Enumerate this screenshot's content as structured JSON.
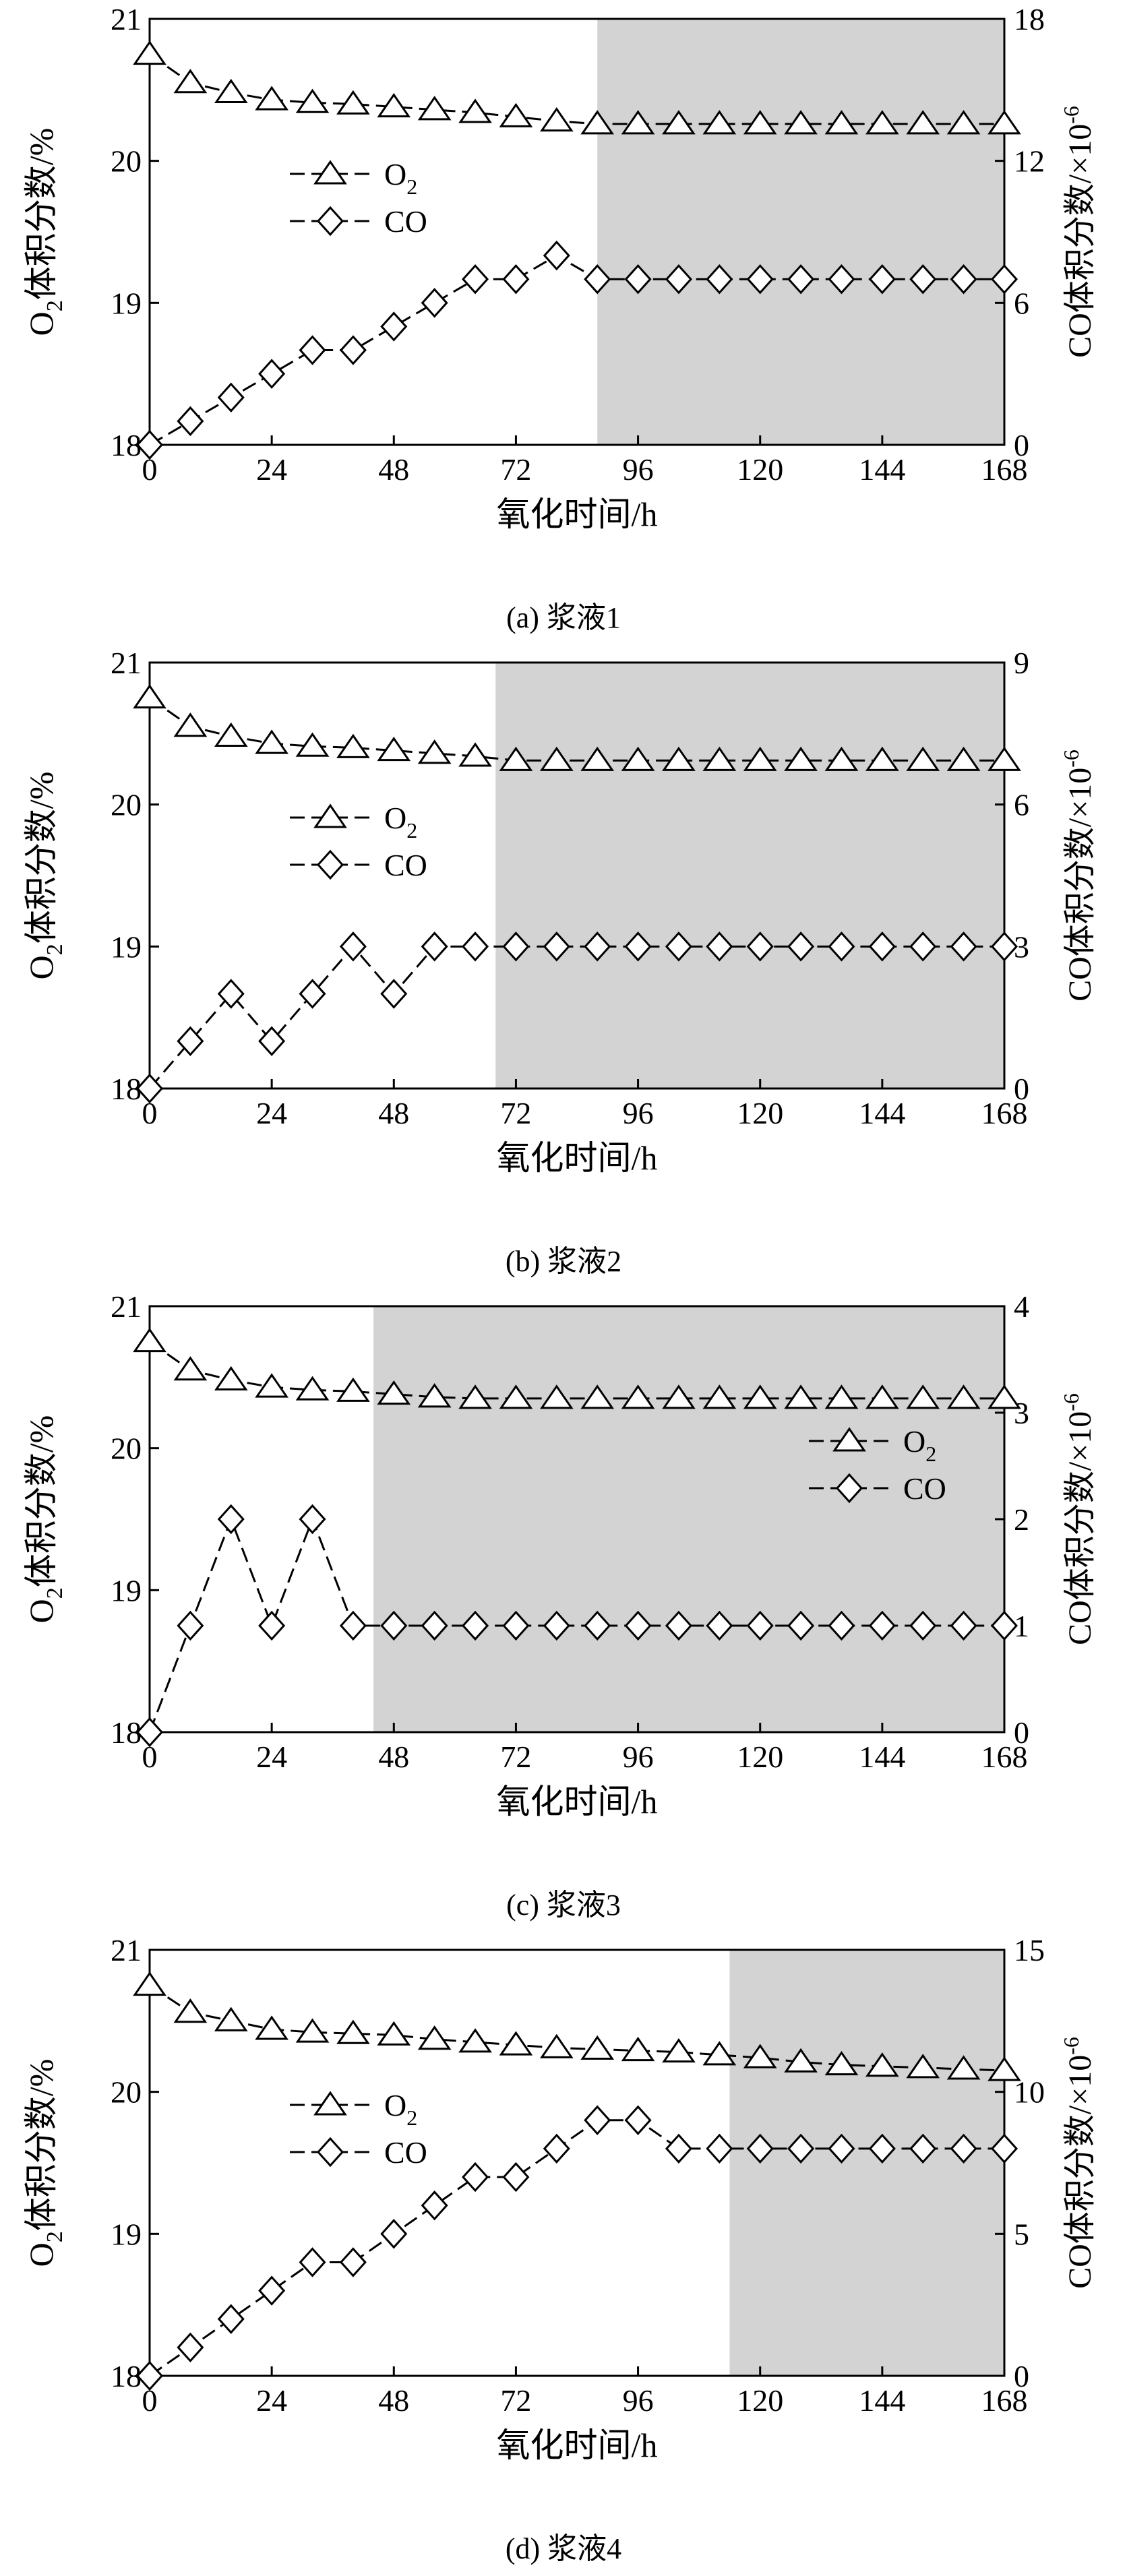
{
  "chart_data": [
    {
      "type": "line",
      "caption": "(a) 浆液1",
      "xlabel": "氧化时间/h",
      "ylabel_left": "O2体积分数/%",
      "ylabel_right": "CO体积分数/×10-6",
      "xlim": [
        0,
        168
      ],
      "xticks": [
        0,
        24,
        48,
        72,
        96,
        120,
        144,
        168
      ],
      "ylim_left": [
        18,
        21
      ],
      "yticks_left": [
        18,
        19,
        20,
        21
      ],
      "ylim_right": [
        0,
        18
      ],
      "yticks_right": [
        0,
        6,
        12,
        18
      ],
      "shade_from_x": 88,
      "legend": "upper-left",
      "series": [
        {
          "name": "O2",
          "axis": "left",
          "marker": "triangle",
          "x": [
            0,
            8,
            16,
            24,
            32,
            40,
            48,
            56,
            64,
            72,
            80,
            88,
            96,
            104,
            112,
            120,
            128,
            136,
            144,
            152,
            160,
            168
          ],
          "values": [
            20.75,
            20.55,
            20.48,
            20.43,
            20.41,
            20.4,
            20.38,
            20.36,
            20.34,
            20.31,
            20.28,
            20.26,
            20.26,
            20.26,
            20.26,
            20.26,
            20.26,
            20.26,
            20.26,
            20.26,
            20.26,
            20.26
          ]
        },
        {
          "name": "CO",
          "axis": "right",
          "marker": "diamond",
          "x": [
            0,
            8,
            16,
            24,
            32,
            40,
            48,
            56,
            64,
            72,
            80,
            88,
            96,
            104,
            112,
            120,
            128,
            136,
            144,
            152,
            160,
            168
          ],
          "values": [
            0,
            1.0,
            2.0,
            3.0,
            4.0,
            4.0,
            5.0,
            6.0,
            7.0,
            7.0,
            8.0,
            7.0,
            7.0,
            7.0,
            7.0,
            7.0,
            7.0,
            7.0,
            7.0,
            7.0,
            7.0,
            7.0
          ]
        }
      ]
    },
    {
      "type": "line",
      "caption": "(b) 浆液2",
      "xlabel": "氧化时间/h",
      "ylabel_left": "O2体积分数/%",
      "ylabel_right": "CO体积分数/×10-6",
      "xlim": [
        0,
        168
      ],
      "xticks": [
        0,
        24,
        48,
        72,
        96,
        120,
        144,
        168
      ],
      "ylim_left": [
        18,
        21
      ],
      "yticks_left": [
        18,
        19,
        20,
        21
      ],
      "ylim_right": [
        0,
        9
      ],
      "yticks_right": [
        0,
        3,
        6,
        9
      ],
      "shade_from_x": 68,
      "legend": "upper-left",
      "series": [
        {
          "name": "O2",
          "axis": "left",
          "marker": "triangle",
          "x": [
            0,
            8,
            16,
            24,
            32,
            40,
            48,
            56,
            64,
            72,
            80,
            88,
            96,
            104,
            112,
            120,
            128,
            136,
            144,
            152,
            160,
            168
          ],
          "values": [
            20.75,
            20.55,
            20.48,
            20.43,
            20.41,
            20.4,
            20.38,
            20.36,
            20.34,
            20.31,
            20.31,
            20.31,
            20.31,
            20.31,
            20.31,
            20.31,
            20.31,
            20.31,
            20.31,
            20.31,
            20.31,
            20.31
          ]
        },
        {
          "name": "CO",
          "axis": "right",
          "marker": "diamond",
          "x": [
            0,
            8,
            16,
            24,
            32,
            40,
            48,
            56,
            64,
            72,
            80,
            88,
            96,
            104,
            112,
            120,
            128,
            136,
            144,
            152,
            160,
            168
          ],
          "values": [
            0,
            1.0,
            2.0,
            1.0,
            2.0,
            3.0,
            2.0,
            3.0,
            3.0,
            3.0,
            3.0,
            3.0,
            3.0,
            3.0,
            3.0,
            3.0,
            3.0,
            3.0,
            3.0,
            3.0,
            3.0,
            3.0
          ]
        }
      ]
    },
    {
      "type": "line",
      "caption": "(c) 浆液3",
      "xlabel": "氧化时间/h",
      "ylabel_left": "O2体积分数/%",
      "ylabel_right": "CO体积分数/×10-6",
      "xlim": [
        0,
        168
      ],
      "xticks": [
        0,
        24,
        48,
        72,
        96,
        120,
        144,
        168
      ],
      "ylim_left": [
        18,
        21
      ],
      "yticks_left": [
        18,
        19,
        20,
        21
      ],
      "ylim_right": [
        0,
        4
      ],
      "yticks_right": [
        0,
        1,
        2,
        3,
        4
      ],
      "shade_from_x": 44,
      "legend": "center-right",
      "series": [
        {
          "name": "O2",
          "axis": "left",
          "marker": "triangle",
          "x": [
            0,
            8,
            16,
            24,
            32,
            40,
            48,
            56,
            64,
            72,
            80,
            88,
            96,
            104,
            112,
            120,
            128,
            136,
            144,
            152,
            160,
            168
          ],
          "values": [
            20.75,
            20.55,
            20.48,
            20.43,
            20.41,
            20.4,
            20.38,
            20.36,
            20.35,
            20.35,
            20.35,
            20.35,
            20.35,
            20.35,
            20.35,
            20.35,
            20.35,
            20.35,
            20.35,
            20.35,
            20.35,
            20.35
          ]
        },
        {
          "name": "CO",
          "axis": "right",
          "marker": "diamond",
          "x": [
            0,
            8,
            16,
            24,
            32,
            40,
            48,
            56,
            64,
            72,
            80,
            88,
            96,
            104,
            112,
            120,
            128,
            136,
            144,
            152,
            160,
            168
          ],
          "values": [
            0,
            1.0,
            2.0,
            1.0,
            2.0,
            1.0,
            1.0,
            1.0,
            1.0,
            1.0,
            1.0,
            1.0,
            1.0,
            1.0,
            1.0,
            1.0,
            1.0,
            1.0,
            1.0,
            1.0,
            1.0,
            1.0
          ]
        }
      ]
    },
    {
      "type": "line",
      "caption": "(d) 浆液4",
      "xlabel": "氧化时间/h",
      "ylabel_left": "O2体积分数/%",
      "ylabel_right": "CO体积分数/×10-6",
      "xlim": [
        0,
        168
      ],
      "xticks": [
        0,
        24,
        48,
        72,
        96,
        120,
        144,
        168
      ],
      "ylim_left": [
        18,
        21
      ],
      "yticks_left": [
        18,
        19,
        20,
        21
      ],
      "ylim_right": [
        0,
        15
      ],
      "yticks_right": [
        0,
        5,
        10,
        15
      ],
      "shade_from_x": 114,
      "legend": "upper-left",
      "series": [
        {
          "name": "O2",
          "axis": "left",
          "marker": "triangle",
          "x": [
            0,
            8,
            16,
            24,
            32,
            40,
            48,
            56,
            64,
            72,
            80,
            88,
            96,
            104,
            112,
            120,
            128,
            136,
            144,
            152,
            160,
            168
          ],
          "values": [
            20.75,
            20.56,
            20.5,
            20.44,
            20.42,
            20.41,
            20.4,
            20.37,
            20.35,
            20.33,
            20.31,
            20.3,
            20.29,
            20.28,
            20.26,
            20.24,
            20.21,
            20.19,
            20.18,
            20.17,
            20.16,
            20.15
          ]
        },
        {
          "name": "CO",
          "axis": "right",
          "marker": "diamond",
          "x": [
            0,
            8,
            16,
            24,
            32,
            40,
            48,
            56,
            64,
            72,
            80,
            88,
            96,
            104,
            112,
            120,
            128,
            136,
            144,
            152,
            160,
            168
          ],
          "values": [
            0,
            1.0,
            2.0,
            3.0,
            4.0,
            4.0,
            5.0,
            6.0,
            7.0,
            7.0,
            8.0,
            9.0,
            9.0,
            8.0,
            8.0,
            8.0,
            8.0,
            8.0,
            8.0,
            8.0,
            8.0,
            8.0
          ]
        }
      ]
    }
  ]
}
